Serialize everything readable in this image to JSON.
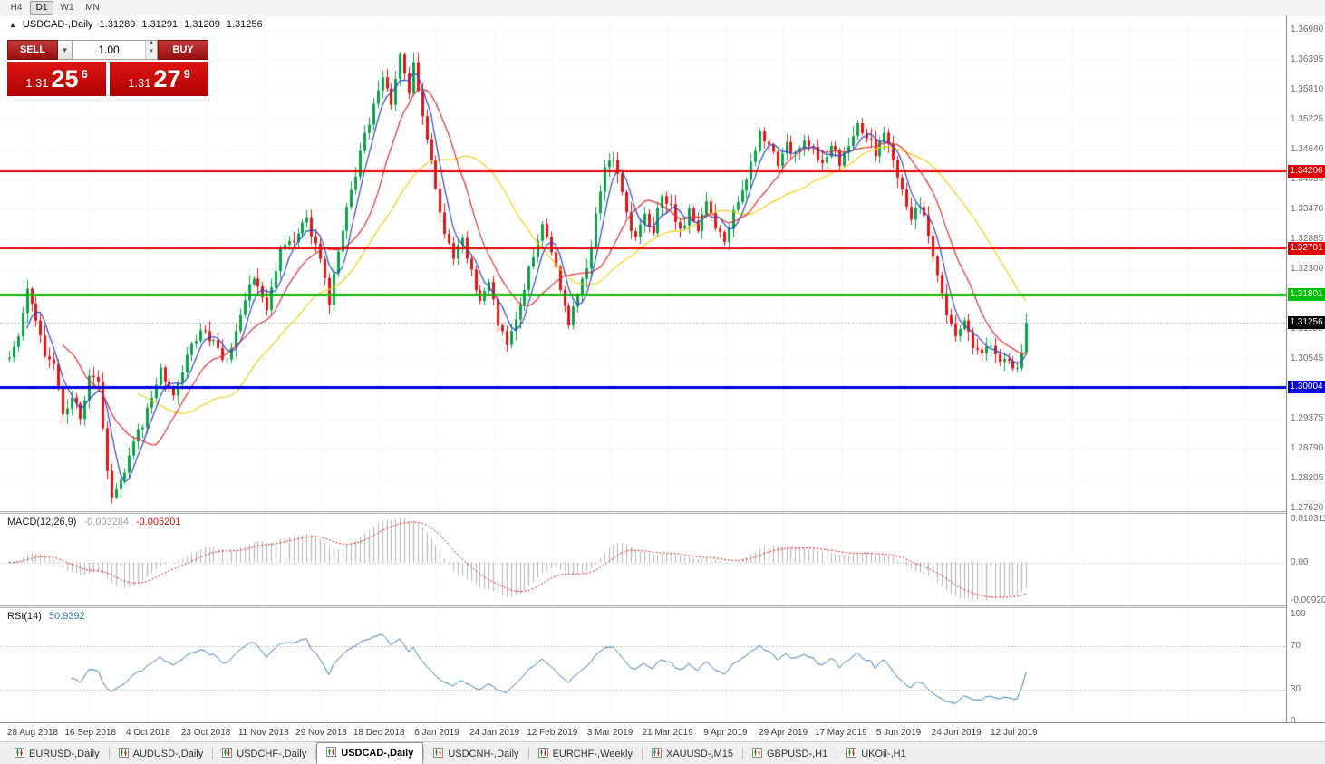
{
  "glyphs": {
    "marker": "▲",
    "caret_down": "▼",
    "spin_up": "▲",
    "spin_down": "▼"
  },
  "toolbar": {
    "timeframes": [
      {
        "label": "H4",
        "active": false
      },
      {
        "label": "D1",
        "active": true
      },
      {
        "label": "W1",
        "active": false
      },
      {
        "label": "MN",
        "active": false
      }
    ]
  },
  "chart_header": {
    "title": "USDCAD-,Daily",
    "open": "1.31289",
    "high": "1.31291",
    "low": "1.31209",
    "close": "1.31256"
  },
  "trade_panel": {
    "sell_label": "SELL",
    "buy_label": "BUY",
    "volume": "1.00",
    "bid": {
      "prefix": "1.31",
      "big": "25",
      "sup": "6"
    },
    "ask": {
      "prefix": "1.31",
      "big": "27",
      "sup": "9"
    }
  },
  "price_scale": {
    "labels": [
      "1.36980",
      "1.36395",
      "1.35810",
      "1.35225",
      "1.34640",
      "1.34055",
      "1.33470",
      "1.32885",
      "1.32300",
      "1.31715",
      "1.31130",
      "1.30545",
      "1.29960",
      "1.29375",
      "1.28790",
      "1.28205",
      "1.27620"
    ]
  },
  "macd_panel": {
    "name": "MACD(12,26,9)",
    "value_main": "-0.003284",
    "value_signal": "-0.005201",
    "scale": {
      "top": "0.010311",
      "mid": "0.00",
      "bottom": "-0.009201"
    }
  },
  "rsi_panel": {
    "name": "RSI(14)",
    "value": "50.9392",
    "scale": {
      "top": "100",
      "upper": "70",
      "lower": "30",
      "bottom": "0"
    }
  },
  "time_axis": {
    "dates": [
      "28 Aug 2018",
      "16 Sep 2018",
      "4 Oct 2018",
      "23 Oct 2018",
      "11 Nov 2018",
      "29 Nov 2018",
      "18 Dec 2018",
      "6 Jan 2019",
      "24 Jan 2019",
      "12 Feb 2019",
      "3 Mar 2019",
      "21 Mar 2019",
      "9 Apr 2019",
      "29 Apr 2019",
      "17 May 2019",
      "5 Jun 2019",
      "24 Jun 2019",
      "12 Jul 2019"
    ]
  },
  "tabs": [
    {
      "label": "EURUSD-,Daily",
      "active": false
    },
    {
      "label": "AUDUSD-,Daily",
      "active": false
    },
    {
      "label": "USDCHF-,Daily",
      "active": false
    },
    {
      "label": "USDCAD-,Daily",
      "active": true
    },
    {
      "label": "USDCNH-,Daily",
      "active": false
    },
    {
      "label": "EURCHF-,Weekly",
      "active": false
    },
    {
      "label": "XAUUSD-,M15",
      "active": false
    },
    {
      "label": "GBPUSD-,H1",
      "active": false
    },
    {
      "label": "UKOil-,H1",
      "active": false
    }
  ],
  "chart_data": {
    "type": "candlestick",
    "symbol": "USDCAD",
    "timeframe": "Daily",
    "num_candles": 230,
    "last_close": 1.31256,
    "up_color": "#0ba04a",
    "down_color": "#e01414",
    "y_axis": {
      "top": 1.3698,
      "bottom": 1.2762,
      "grid_step": 0.00585
    },
    "horizontal_lines": [
      {
        "price": 1.34206,
        "label": "1.34206",
        "color": "#e00000",
        "width": 2
      },
      {
        "price": 1.32701,
        "label": "1.32701",
        "color": "#e00000",
        "width": 2
      },
      {
        "price": 1.31801,
        "label": "1.31801",
        "color": "#00c000",
        "width": 3
      },
      {
        "price": 1.30004,
        "label": "1.30004",
        "color": "#0000dd",
        "width": 3
      }
    ],
    "bid_line": {
      "price": 1.31256,
      "label": "1.31256",
      "color": "#000000"
    },
    "moving_averages": [
      {
        "period": 5,
        "color": "#2a46c8"
      },
      {
        "period": 13,
        "color": "#e03030"
      },
      {
        "period": 30,
        "color": "#f2cf12"
      }
    ],
    "indicators": {
      "macd": {
        "fast": 12,
        "slow": 26,
        "signal": 9,
        "last_main": -0.003284,
        "last_signal": -0.005201,
        "scale_max": 0.010311,
        "scale_min": -0.009201
      },
      "rsi": {
        "period": 14,
        "last": 50.9392,
        "levels": [
          70,
          30
        ]
      }
    },
    "price_path_anchors": [
      [
        0,
        1.3055
      ],
      [
        2,
        1.31
      ],
      [
        4,
        1.3195
      ],
      [
        6,
        1.314
      ],
      [
        8,
        1.306
      ],
      [
        10,
        1.3035
      ],
      [
        12,
        1.2945
      ],
      [
        14,
        1.299
      ],
      [
        16,
        1.293
      ],
      [
        18,
        1.303
      ],
      [
        20,
        1.301
      ],
      [
        22,
        1.283
      ],
      [
        23,
        1.279
      ],
      [
        25,
        1.2815
      ],
      [
        28,
        1.289
      ],
      [
        31,
        1.295
      ],
      [
        34,
        1.304
      ],
      [
        37,
        1.2975
      ],
      [
        40,
        1.306
      ],
      [
        43,
        1.312
      ],
      [
        46,
        1.309
      ],
      [
        49,
        1.305
      ],
      [
        52,
        1.313
      ],
      [
        55,
        1.322
      ],
      [
        58,
        1.316
      ],
      [
        61,
        1.327
      ],
      [
        64,
        1.328
      ],
      [
        67,
        1.333
      ],
      [
        70,
        1.324
      ],
      [
        72,
        1.317
      ],
      [
        75,
        1.331
      ],
      [
        78,
        1.342
      ],
      [
        81,
        1.352
      ],
      [
        84,
        1.36
      ],
      [
        86,
        1.356
      ],
      [
        88,
        1.3655
      ],
      [
        90,
        1.3575
      ],
      [
        91,
        1.3625
      ],
      [
        94,
        1.348
      ],
      [
        96,
        1.339
      ],
      [
        98,
        1.33
      ],
      [
        100,
        1.325
      ],
      [
        102,
        1.33
      ],
      [
        104,
        1.322
      ],
      [
        106,
        1.317
      ],
      [
        108,
        1.321
      ],
      [
        110,
        1.313
      ],
      [
        112,
        1.309
      ],
      [
        114,
        1.3135
      ],
      [
        116,
        1.319
      ],
      [
        118,
        1.326
      ],
      [
        120,
        1.331
      ],
      [
        122,
        1.327
      ],
      [
        124,
        1.319
      ],
      [
        126,
        1.313
      ],
      [
        128,
        1.317
      ],
      [
        130,
        1.324
      ],
      [
        132,
        1.333
      ],
      [
        134,
        1.344
      ],
      [
        135,
        1.345
      ],
      [
        137,
        1.342
      ],
      [
        139,
        1.334
      ],
      [
        141,
        1.329
      ],
      [
        143,
        1.334
      ],
      [
        145,
        1.331
      ],
      [
        147,
        1.338
      ],
      [
        149,
        1.335
      ],
      [
        151,
        1.33
      ],
      [
        153,
        1.334
      ],
      [
        155,
        1.331
      ],
      [
        157,
        1.336
      ],
      [
        159,
        1.332
      ],
      [
        161,
        1.329
      ],
      [
        163,
        1.334
      ],
      [
        165,
        1.339
      ],
      [
        167,
        1.344
      ],
      [
        169,
        1.35
      ],
      [
        171,
        1.348
      ],
      [
        173,
        1.344
      ],
      [
        175,
        1.348
      ],
      [
        177,
        1.345
      ],
      [
        179,
        1.349
      ],
      [
        181,
        1.346
      ],
      [
        183,
        1.343
      ],
      [
        185,
        1.347
      ],
      [
        187,
        1.344
      ],
      [
        189,
        1.348
      ],
      [
        191,
        1.352
      ],
      [
        193,
        1.349
      ],
      [
        195,
        1.346
      ],
      [
        197,
        1.35
      ],
      [
        199,
        1.344
      ],
      [
        201,
        1.338
      ],
      [
        203,
        1.332
      ],
      [
        205,
        1.336
      ],
      [
        207,
        1.329
      ],
      [
        209,
        1.322
      ],
      [
        211,
        1.315
      ],
      [
        213,
        1.31
      ],
      [
        215,
        1.313
      ],
      [
        217,
        1.308
      ],
      [
        219,
        1.306
      ],
      [
        221,
        1.309
      ],
      [
        223,
        1.304
      ],
      [
        225,
        1.305
      ],
      [
        227,
        1.303
      ],
      [
        228,
        1.306
      ],
      [
        229,
        1.31256
      ]
    ]
  }
}
